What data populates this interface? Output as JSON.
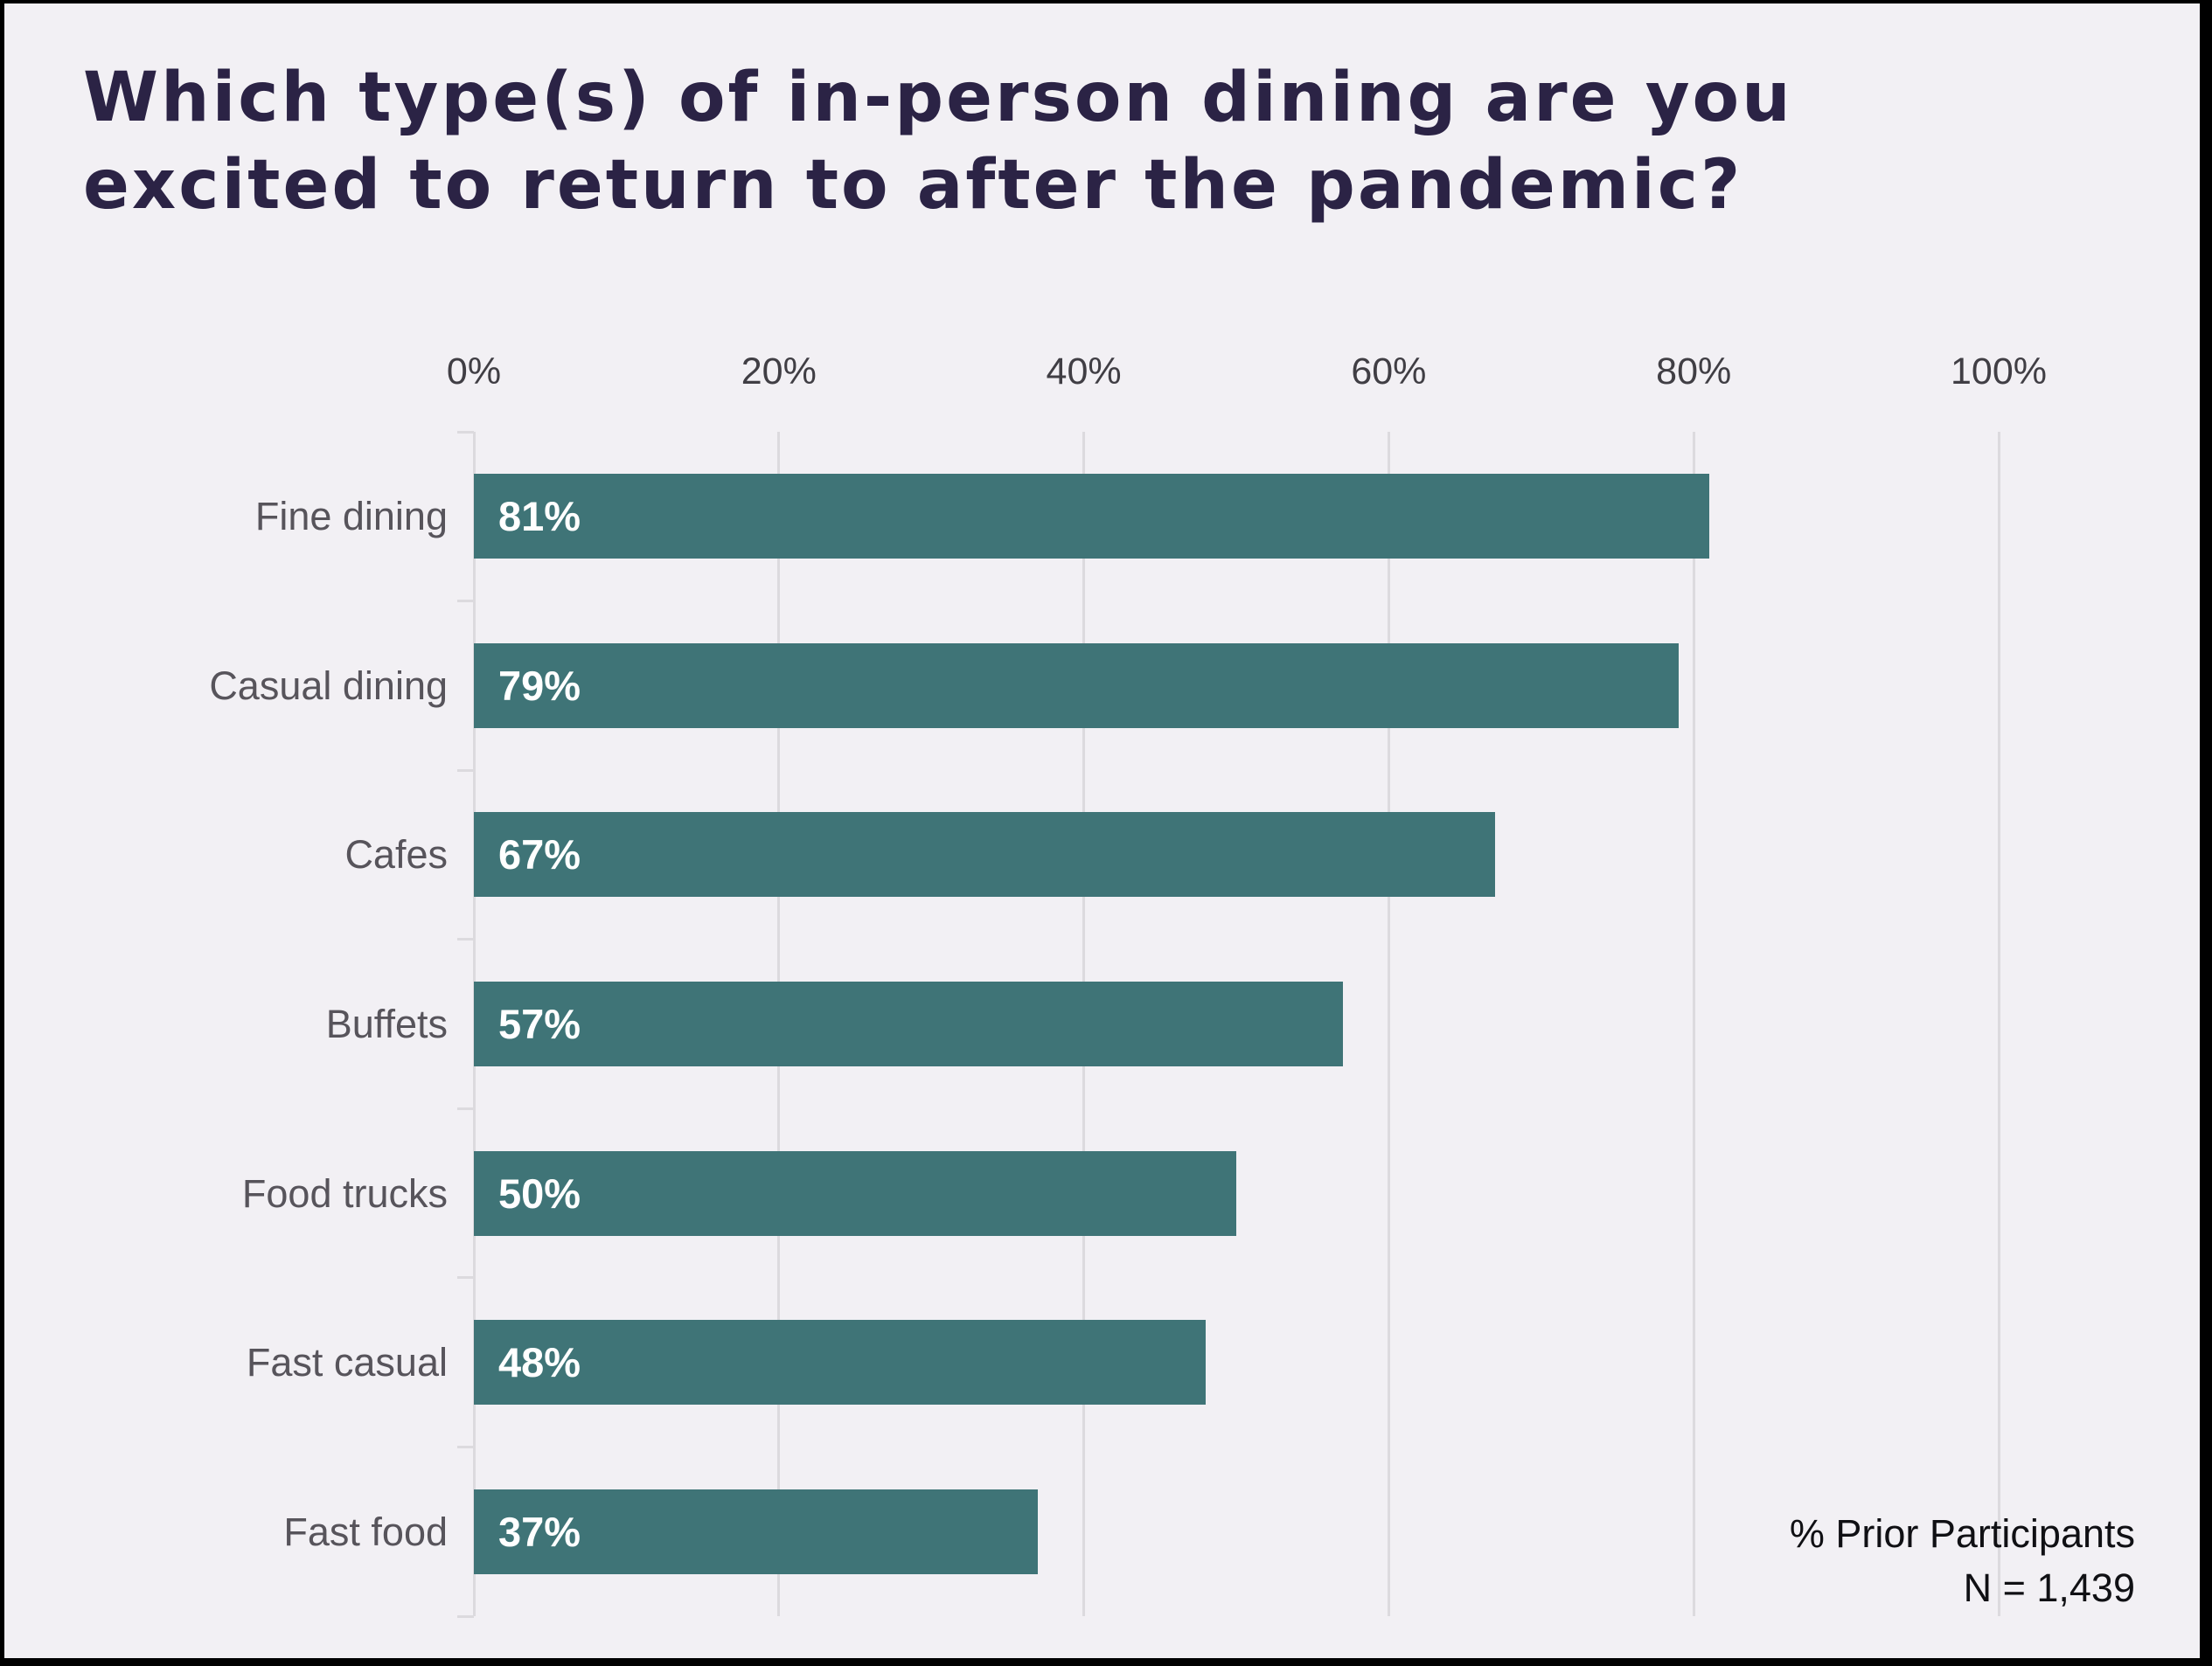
{
  "page": {
    "background": "#f2f0f4",
    "frame_color": "#000000"
  },
  "title": {
    "line1": "Which type(s) of in-person dining are you",
    "line2": "excited to return to after the pandemic?",
    "color": "#2b2345"
  },
  "chart_data": {
    "type": "bar",
    "orientation": "horizontal",
    "title": "Which type(s) of in-person dining are you excited to return to after the pandemic?",
    "categories": [
      "Fine dining",
      "Casual dining",
      "Cafes",
      "Buffets",
      "Food trucks",
      "Fast casual",
      "Fast food"
    ],
    "values": [
      81,
      79,
      67,
      57,
      50,
      48,
      37
    ],
    "value_labels": [
      "81%",
      "79%",
      "67%",
      "57%",
      "50%",
      "48%",
      "37%"
    ],
    "x_ticks": [
      "0%",
      "20%",
      "40%",
      "60%",
      "80%",
      "100%"
    ],
    "x_tick_values": [
      0,
      20,
      40,
      60,
      80,
      100
    ],
    "xlim": [
      0,
      100
    ],
    "xlabel": "",
    "ylabel": "",
    "grid": true,
    "gridline_color": "#dcdade",
    "bar_color": "#3f7477",
    "value_label_color": "#ffffff",
    "legend": "none"
  },
  "annotation": {
    "line1": "% Prior Participants",
    "line2": "N = 1,439"
  }
}
